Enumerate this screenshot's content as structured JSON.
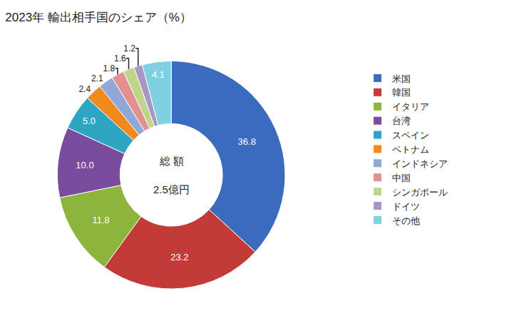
{
  "chart_data": {
    "type": "pie",
    "title": "2023年 輸出相手国のシェア（%）",
    "annotations": [
      "総 額",
      "2.5億円"
    ],
    "categories": [
      "米国",
      "韓国",
      "イタリア",
      "台湾",
      "スペイン",
      "ベトナム",
      "インドネシア",
      "中国",
      "シンガポール",
      "ドイツ",
      "その他"
    ],
    "values": [
      36.8,
      23.2,
      11.8,
      10.0,
      5.0,
      2.4,
      2.1,
      1.8,
      1.6,
      1.2,
      4.1
    ],
    "value_labels": [
      "36.8",
      "23.2",
      "11.8",
      "10.0",
      "5.0",
      "2.4",
      "2.1",
      "1.8",
      "1.6",
      "1.2",
      "4.1"
    ],
    "colors": [
      "#3a6bbd",
      "#c23b38",
      "#8db43c",
      "#7a4c9e",
      "#2ea6c2",
      "#f08a1f",
      "#8fa8d8",
      "#e39190",
      "#bfd68a",
      "#a996c9",
      "#7fd0e0"
    ],
    "data_labels": true,
    "legend": "right"
  }
}
